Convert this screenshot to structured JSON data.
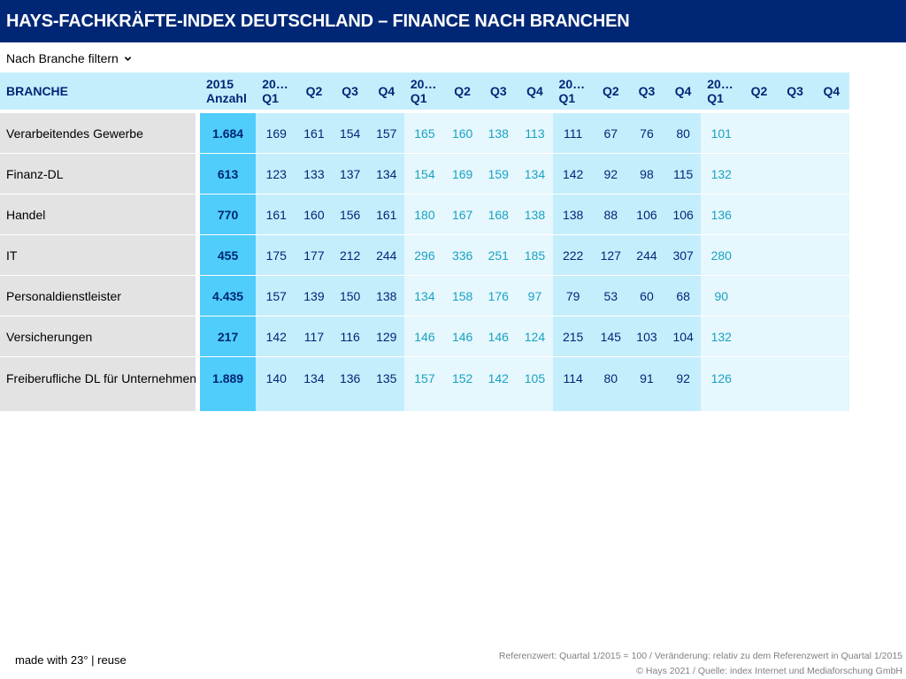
{
  "title": "HAYS-FACHKRÄFTE-INDEX DEUTSCHLAND – FINANCE NACH BRANCHEN",
  "filter": {
    "label": "Nach Branche filtern"
  },
  "chart_data": {
    "type": "table",
    "title": "HAYS-FACHKRÄFTE-INDEX DEUTSCHLAND – FINANCE NACH BRANCHEN",
    "header": {
      "branche": "BRANCHE",
      "anzahl": [
        "2015",
        "Anzahl"
      ],
      "quarters": [
        [
          "20…",
          "Q1"
        ],
        [
          "",
          "Q2"
        ],
        [
          "",
          "Q3"
        ],
        [
          "",
          "Q4"
        ],
        [
          "20…",
          "Q1"
        ],
        [
          "",
          "Q2"
        ],
        [
          "",
          "Q3"
        ],
        [
          "",
          "Q4"
        ],
        [
          "20…",
          "Q1"
        ],
        [
          "",
          "Q2"
        ],
        [
          "",
          "Q3"
        ],
        [
          "",
          "Q4"
        ],
        [
          "20…",
          "Q1"
        ],
        [
          "",
          "Q2"
        ],
        [
          "",
          "Q3"
        ],
        [
          "",
          "Q4"
        ]
      ]
    },
    "rows": [
      {
        "label": "Verarbeitendes Gewerbe",
        "anzahl": "1.684",
        "values": [
          "169",
          "161",
          "154",
          "157",
          "165",
          "160",
          "138",
          "113",
          "111",
          "67",
          "76",
          "80",
          "101",
          "",
          "",
          ""
        ]
      },
      {
        "label": "Finanz-DL",
        "anzahl": "613",
        "values": [
          "123",
          "133",
          "137",
          "134",
          "154",
          "169",
          "159",
          "134",
          "142",
          "92",
          "98",
          "115",
          "132",
          "",
          "",
          ""
        ]
      },
      {
        "label": "Handel",
        "anzahl": "770",
        "values": [
          "161",
          "160",
          "156",
          "161",
          "180",
          "167",
          "168",
          "138",
          "138",
          "88",
          "106",
          "106",
          "136",
          "",
          "",
          ""
        ]
      },
      {
        "label": "IT",
        "anzahl": "455",
        "values": [
          "175",
          "177",
          "212",
          "244",
          "296",
          "336",
          "251",
          "185",
          "222",
          "127",
          "244",
          "307",
          "280",
          "",
          "",
          ""
        ]
      },
      {
        "label": "Personaldienstleister",
        "anzahl": "4.435",
        "values": [
          "157",
          "139",
          "150",
          "138",
          "134",
          "158",
          "176",
          "97",
          "79",
          "53",
          "60",
          "68",
          "90",
          "",
          "",
          ""
        ]
      },
      {
        "label": "Versicherungen",
        "anzahl": "217",
        "values": [
          "142",
          "117",
          "116",
          "129",
          "146",
          "146",
          "146",
          "124",
          "215",
          "145",
          "103",
          "104",
          "132",
          "",
          "",
          ""
        ]
      },
      {
        "label": "Freiberufliche DL für Unternehmen",
        "anzahl": "1.889",
        "values": [
          "140",
          "134",
          "136",
          "135",
          "157",
          "152",
          "142",
          "105",
          "114",
          "80",
          "91",
          "92",
          "126",
          "",
          "",
          ""
        ]
      }
    ],
    "colors": {
      "header_bg": "#c5eefd",
      "anzahl_bg": "#50cdfb",
      "group_dark_bg": "#c5eefd",
      "group_light_bg": "#e6f7fd",
      "dark_text": "#002776",
      "light_text": "#17a3c4",
      "label_bg": "#e3e3e3"
    }
  },
  "footer": {
    "made_with": "made with 23°",
    "separator": "|",
    "reuse": "reuse",
    "note": "Referenzwert: Quartal 1/2015 = 100 / Veränderung: relativ zu dem Referenzwert in Quartal 1/2015",
    "source": "© Hays 2021 / Quelle: index Internet und Mediaforschung GmbH"
  }
}
